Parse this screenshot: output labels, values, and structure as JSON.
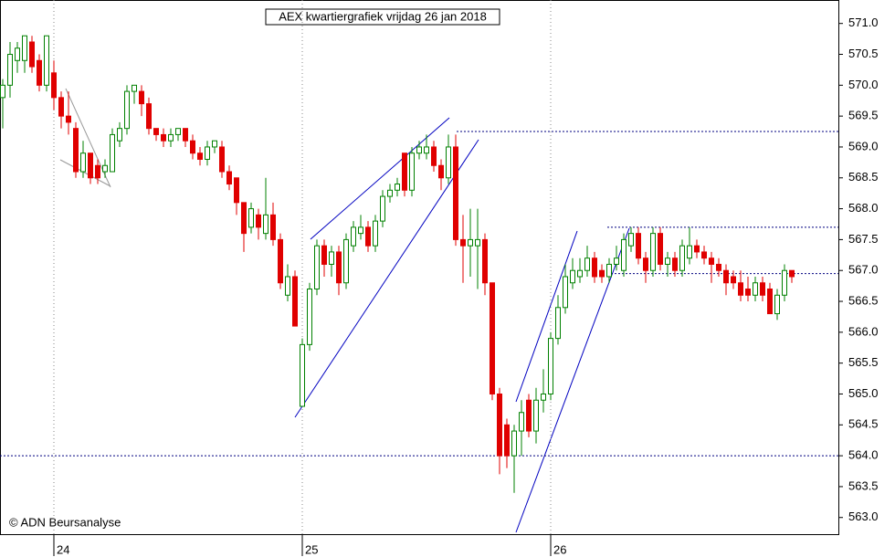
{
  "chart_data": {
    "type": "candlestick",
    "title": "AEX kwartiergrafiek vrijdag 26 jan 2018",
    "annotation": "© ADN Beursanalyse",
    "categories": [
      null,
      null,
      null,
      null,
      null,
      null,
      null,
      "24",
      null,
      null,
      null,
      null,
      null,
      null,
      null,
      null,
      null,
      null,
      null,
      null,
      null,
      null,
      null,
      null,
      null,
      null,
      null,
      null,
      null,
      null,
      null,
      null,
      null,
      null,
      null,
      null,
      null,
      null,
      null,
      null,
      null,
      "25",
      null,
      null,
      null,
      null,
      null,
      null,
      null,
      null,
      null,
      null,
      null,
      null,
      null,
      null,
      null,
      null,
      null,
      null,
      null,
      null,
      null,
      null,
      null,
      null,
      null,
      null,
      null,
      null,
      null,
      null,
      null,
      null,
      null,
      "26",
      null,
      null,
      null,
      null,
      null,
      null,
      null,
      null,
      null,
      null,
      null,
      null,
      null,
      null,
      null,
      null,
      null,
      null,
      null,
      null,
      null,
      null,
      null,
      null,
      null,
      null,
      null,
      null,
      null,
      null,
      null,
      null,
      null
    ],
    "open": [
      569.8,
      570.0,
      570.4,
      570.4,
      570.7,
      570.4,
      570.0,
      570.2,
      569.8,
      569.5,
      569.3,
      568.6,
      568.9,
      568.7,
      568.6,
      568.6,
      569.1,
      569.3,
      569.9,
      569.9,
      569.7,
      569.3,
      569.2,
      569.1,
      569.2,
      569.3,
      569.1,
      568.9,
      568.8,
      569.0,
      569.0,
      568.6,
      568.5,
      568.1,
      567.7,
      567.9,
      567.6,
      567.9,
      567.5,
      566.6,
      566.9,
      564.8,
      565.8,
      566.7,
      567.4,
      567.1,
      567.3,
      566.8,
      567.4,
      567.6,
      567.7,
      567.4,
      567.8,
      568.2,
      568.3,
      568.9,
      568.3,
      568.9,
      568.9,
      569.0,
      568.7,
      568.5,
      569.0,
      567.5,
      567.4,
      567.4,
      567.5,
      566.8,
      565.0,
      564.5,
      564.0,
      564.4,
      564.9,
      564.4,
      564.9,
      565.0,
      565.9,
      566.4,
      566.8,
      566.9,
      567.0,
      567.2,
      567.0,
      566.9,
      567.1,
      567.0,
      567.4,
      567.6,
      567.2,
      567.0,
      567.6,
      567.1,
      567.2,
      567.0,
      567.2,
      567.4,
      567.3,
      567.2,
      567.1,
      567.0,
      566.9,
      566.8,
      566.7,
      566.6,
      566.8,
      566.7,
      566.3,
      566.6,
      567.0
    ],
    "high": [
      570.1,
      570.7,
      570.7,
      570.8,
      570.8,
      570.5,
      570.8,
      570.4,
      569.9,
      569.9,
      569.4,
      569.1,
      568.9,
      568.8,
      568.8,
      569.3,
      569.4,
      570.0,
      570.0,
      570.0,
      569.8,
      569.3,
      569.3,
      569.3,
      569.3,
      569.3,
      569.2,
      569.0,
      569.1,
      569.1,
      569.1,
      568.7,
      568.5,
      568.1,
      568.1,
      568.0,
      568.5,
      568.1,
      567.6,
      567.1,
      567.0,
      565.9,
      566.8,
      567.5,
      567.5,
      567.4,
      567.4,
      567.6,
      567.8,
      567.9,
      567.8,
      567.9,
      568.3,
      568.4,
      568.5,
      568.9,
      569.0,
      569.1,
      569.2,
      569.1,
      568.8,
      569.2,
      569.2,
      567.9,
      568.0,
      568.0,
      567.6,
      566.8,
      565.1,
      564.6,
      564.5,
      564.9,
      565.0,
      565.1,
      565.4,
      566.0,
      566.6,
      567.1,
      567.2,
      567.2,
      567.4,
      567.3,
      567.1,
      567.2,
      567.4,
      567.6,
      567.7,
      567.7,
      567.3,
      567.7,
      567.7,
      567.3,
      567.3,
      567.5,
      567.7,
      567.5,
      567.4,
      567.3,
      567.2,
      567.1,
      567.0,
      567.0,
      566.9,
      566.9,
      566.9,
      566.8,
      566.7,
      567.1,
      567.0
    ],
    "low": [
      569.3,
      569.8,
      570.2,
      570.2,
      570.2,
      569.9,
      569.9,
      569.6,
      569.3,
      569.2,
      568.5,
      568.5,
      568.4,
      568.4,
      568.5,
      568.6,
      569.0,
      569.2,
      569.7,
      569.5,
      569.2,
      569.1,
      569.0,
      569.0,
      569.1,
      569.0,
      568.8,
      568.7,
      568.7,
      568.9,
      568.5,
      568.3,
      567.9,
      567.3,
      567.6,
      567.5,
      567.5,
      567.4,
      566.7,
      566.5,
      566.1,
      564.8,
      565.7,
      566.6,
      566.9,
      566.9,
      566.6,
      566.7,
      567.3,
      567.5,
      567.3,
      567.3,
      567.7,
      568.1,
      568.2,
      568.2,
      568.2,
      568.8,
      568.8,
      568.6,
      568.3,
      568.4,
      567.4,
      566.8,
      566.9,
      566.7,
      566.6,
      564.9,
      563.7,
      563.8,
      563.4,
      564.0,
      564.3,
      564.2,
      564.7,
      564.9,
      565.8,
      566.3,
      566.7,
      566.8,
      566.9,
      566.8,
      566.8,
      566.8,
      567.0,
      566.9,
      567.3,
      567.1,
      566.8,
      566.9,
      567.0,
      566.9,
      566.9,
      566.9,
      567.1,
      567.2,
      567.1,
      566.8,
      566.9,
      566.6,
      566.7,
      566.5,
      566.5,
      566.5,
      566.5,
      566.3,
      566.2,
      566.5,
      566.8
    ],
    "close": [
      570.0,
      570.5,
      570.6,
      570.8,
      570.3,
      570.0,
      570.8,
      569.8,
      569.5,
      569.4,
      568.6,
      568.9,
      568.5,
      568.5,
      568.7,
      569.2,
      569.3,
      569.9,
      570.0,
      569.7,
      569.3,
      569.2,
      569.1,
      569.2,
      569.3,
      569.1,
      568.9,
      568.8,
      569.0,
      569.1,
      568.6,
      568.4,
      568.1,
      567.6,
      568.0,
      567.7,
      567.9,
      567.5,
      566.8,
      566.9,
      566.1,
      565.8,
      566.7,
      567.4,
      567.1,
      567.3,
      566.8,
      567.5,
      567.7,
      567.7,
      567.4,
      567.8,
      568.2,
      568.3,
      568.4,
      568.3,
      568.9,
      569.0,
      569.0,
      568.7,
      568.5,
      569.0,
      567.5,
      567.4,
      567.5,
      567.5,
      566.8,
      565.0,
      564.0,
      564.0,
      564.4,
      564.7,
      564.4,
      564.9,
      565.0,
      565.9,
      566.4,
      566.9,
      567.0,
      567.0,
      567.2,
      566.9,
      566.9,
      567.1,
      567.2,
      567.5,
      567.6,
      567.2,
      567.0,
      567.6,
      567.1,
      567.2,
      567.0,
      567.4,
      567.4,
      567.3,
      567.2,
      567.1,
      567.0,
      566.8,
      566.8,
      566.6,
      566.6,
      566.8,
      566.6,
      566.3,
      566.6,
      567.0,
      566.9
    ],
    "up_color": "#008000",
    "down_color": "#e00000",
    "levels": [
      569.25,
      567.7,
      566.95,
      564.0
    ],
    "ylim": [
      562.73,
      571.38
    ],
    "yticks": [
      {
        "value": 563.0,
        "label": "563.0"
      },
      {
        "value": 563.5,
        "label": "563.5"
      },
      {
        "value": 564.0,
        "label": "564.0"
      },
      {
        "value": 564.5,
        "label": "564.5"
      },
      {
        "value": 565.0,
        "label": "565.0"
      },
      {
        "value": 565.5,
        "label": "565.5"
      },
      {
        "value": 566.0,
        "label": "566.0"
      },
      {
        "value": 566.5,
        "label": "566.5"
      },
      {
        "value": 567.0,
        "label": "567.0"
      },
      {
        "value": 567.5,
        "label": "567.5"
      },
      {
        "value": 568.0,
        "label": "568.0"
      },
      {
        "value": 568.5,
        "label": "568.5"
      },
      {
        "value": 569.0,
        "label": "569.0"
      },
      {
        "value": 569.5,
        "label": "569.5"
      },
      {
        "value": 570.0,
        "label": "570.0"
      },
      {
        "value": 570.5,
        "label": "570.5"
      },
      {
        "value": 571.0,
        "label": "571.0"
      }
    ]
  }
}
